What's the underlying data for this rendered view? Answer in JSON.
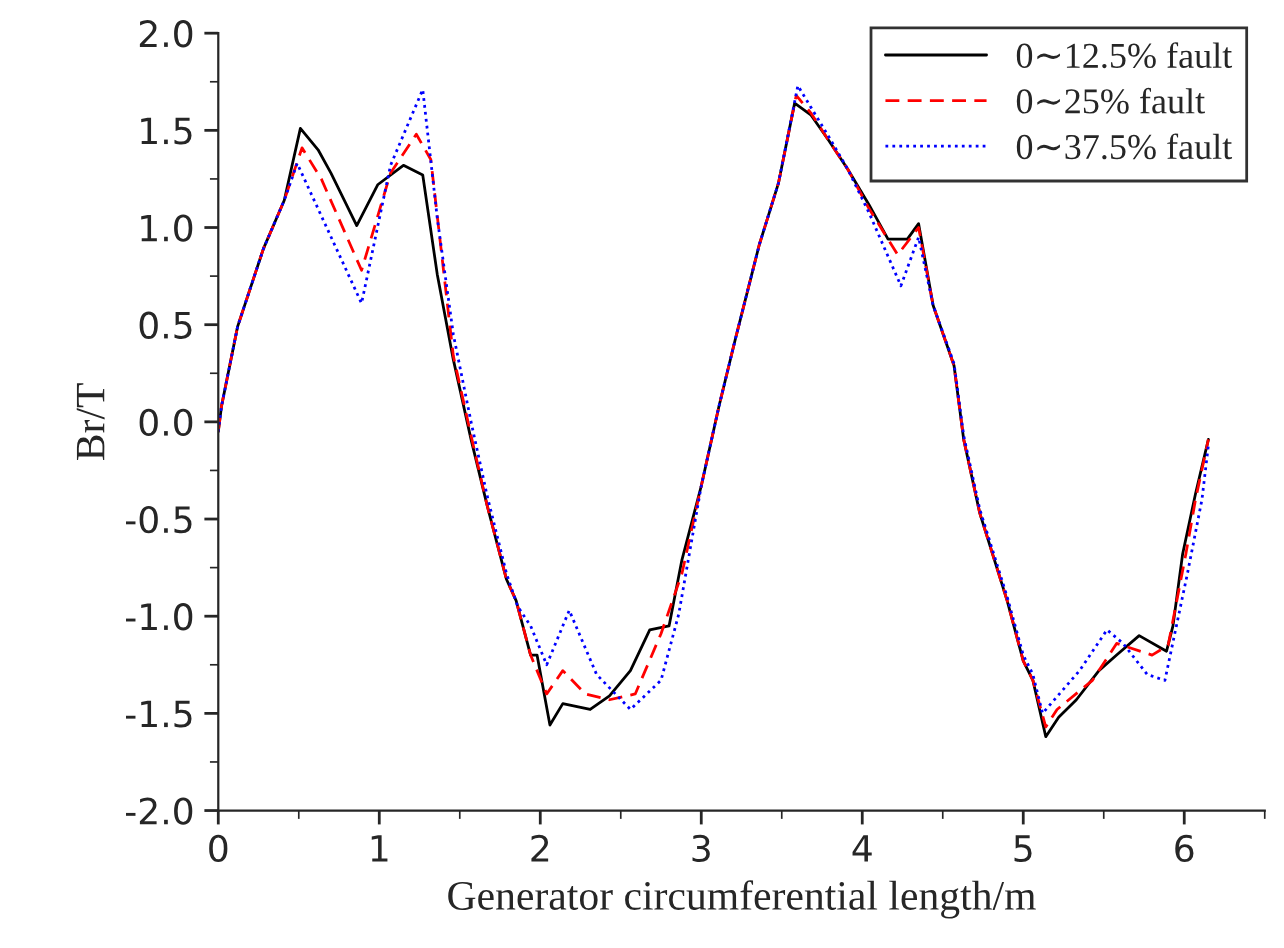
{
  "chart_data": {
    "type": "line",
    "xlabel": "Generator circumferential length/m",
    "ylabel": "Br/T",
    "xlim": [
      0,
      6.5
    ],
    "xticks": [
      0,
      1,
      2,
      3,
      4,
      5,
      6
    ],
    "ylim": [
      -2.0,
      2.0
    ],
    "yticks": [
      {
        "value": -2.0,
        "label": "-2.0"
      },
      {
        "value": -1.5,
        "label": "-1.5"
      },
      {
        "value": -1.0,
        "label": "-1.0"
      },
      {
        "value": -0.5,
        "label": "-0.5"
      },
      {
        "value": 0.0,
        "label": "0.0"
      },
      {
        "value": 0.5,
        "label": "0.5"
      },
      {
        "value": 1.0,
        "label": "1.0"
      },
      {
        "value": 1.5,
        "label": "1.5"
      },
      {
        "value": 2.0,
        "label": "2.0"
      }
    ],
    "grid": false,
    "legend": "top right",
    "series": [
      {
        "name": "0∼12.5% fault",
        "color": "#000000",
        "line_style": "solid",
        "x": [
          0,
          0.02,
          0.12,
          0.28,
          0.41,
          0.51,
          0.62,
          0.7,
          0.86,
          0.99,
          1.15,
          1.27,
          1.36,
          1.46,
          1.57,
          1.67,
          1.79,
          1.85,
          1.94,
          1.98,
          2.06,
          2.14,
          2.31,
          2.43,
          2.56,
          2.68,
          2.8,
          2.88,
          3.0,
          3.11,
          3.21,
          3.36,
          3.48,
          3.58,
          3.68,
          3.79,
          3.91,
          4.04,
          4.16,
          4.28,
          4.35,
          4.44,
          4.57,
          4.63,
          4.73,
          4.9,
          5.0,
          5.06,
          5.14,
          5.22,
          5.33,
          5.47,
          5.58,
          5.72,
          5.89,
          5.93,
          5.99,
          6.07,
          6.15
        ],
        "values": [
          -0.05,
          0.08,
          0.49,
          0.89,
          1.14,
          1.51,
          1.4,
          1.28,
          1.01,
          1.22,
          1.32,
          1.27,
          0.76,
          0.32,
          -0.09,
          -0.43,
          -0.81,
          -0.92,
          -1.2,
          -1.2,
          -1.56,
          -1.45,
          -1.48,
          -1.41,
          -1.28,
          -1.07,
          -1.05,
          -0.71,
          -0.33,
          0.08,
          0.42,
          0.91,
          1.23,
          1.64,
          1.58,
          1.45,
          1.3,
          1.12,
          0.94,
          0.94,
          1.02,
          0.6,
          0.29,
          -0.09,
          -0.47,
          -0.92,
          -1.23,
          -1.33,
          -1.62,
          -1.52,
          -1.43,
          -1.28,
          -1.2,
          -1.1,
          -1.18,
          -1.05,
          -0.68,
          -0.37,
          -0.09
        ]
      },
      {
        "name": "0∼25% fault",
        "color": "#ff0000",
        "line_style": "dashed",
        "x": [
          0,
          0.02,
          0.12,
          0.28,
          0.41,
          0.52,
          0.64,
          0.89,
          1.07,
          1.23,
          1.32,
          1.46,
          1.57,
          1.67,
          1.79,
          1.85,
          1.94,
          2.04,
          2.14,
          2.28,
          2.43,
          2.59,
          2.75,
          2.88,
          3.0,
          3.11,
          3.21,
          3.36,
          3.48,
          3.59,
          3.68,
          3.79,
          3.91,
          4.04,
          4.22,
          4.35,
          4.44,
          4.57,
          4.63,
          4.73,
          4.9,
          5.0,
          5.06,
          5.14,
          5.21,
          5.43,
          5.58,
          5.8,
          5.9,
          6.01,
          6.07,
          6.15
        ],
        "values": [
          -0.05,
          0.08,
          0.49,
          0.89,
          1.14,
          1.41,
          1.25,
          0.78,
          1.28,
          1.48,
          1.35,
          0.34,
          -0.07,
          -0.43,
          -0.81,
          -0.92,
          -1.2,
          -1.4,
          -1.28,
          -1.4,
          -1.43,
          -1.4,
          -1.09,
          -0.78,
          -0.33,
          0.08,
          0.42,
          0.91,
          1.23,
          1.68,
          1.59,
          1.45,
          1.3,
          1.1,
          0.86,
          1.0,
          0.6,
          0.29,
          -0.09,
          -0.47,
          -0.92,
          -1.23,
          -1.33,
          -1.57,
          -1.48,
          -1.33,
          -1.14,
          -1.2,
          -1.15,
          -0.68,
          -0.4,
          -0.09
        ]
      },
      {
        "name": "0∼37.5% fault",
        "color": "#0000ff",
        "line_style": "dotted",
        "x": [
          0,
          0.02,
          0.12,
          0.28,
          0.41,
          0.49,
          0.89,
          1.07,
          1.27,
          1.36,
          1.46,
          1.57,
          1.67,
          1.79,
          1.86,
          1.94,
          2.04,
          2.18,
          2.35,
          2.56,
          2.75,
          2.86,
          3.0,
          3.11,
          3.21,
          3.36,
          3.48,
          3.6,
          3.68,
          3.79,
          3.91,
          4.04,
          4.24,
          4.35,
          4.44,
          4.57,
          4.63,
          4.73,
          4.9,
          5.0,
          5.06,
          5.12,
          5.35,
          5.52,
          5.62,
          5.77,
          5.88,
          6.02,
          6.11,
          6.15
        ],
        "values": [
          -0.05,
          0.08,
          0.49,
          0.89,
          1.14,
          1.33,
          0.61,
          1.32,
          1.71,
          1.05,
          0.45,
          0.0,
          -0.38,
          -0.78,
          -0.95,
          -1.05,
          -1.25,
          -0.97,
          -1.3,
          -1.48,
          -1.33,
          -0.99,
          -0.33,
          0.08,
          0.42,
          0.91,
          1.23,
          1.73,
          1.62,
          1.47,
          1.3,
          1.08,
          0.7,
          0.95,
          0.6,
          0.3,
          -0.07,
          -0.45,
          -0.9,
          -1.2,
          -1.3,
          -1.5,
          -1.28,
          -1.07,
          -1.14,
          -1.3,
          -1.33,
          -0.78,
          -0.4,
          -0.12
        ]
      }
    ]
  }
}
